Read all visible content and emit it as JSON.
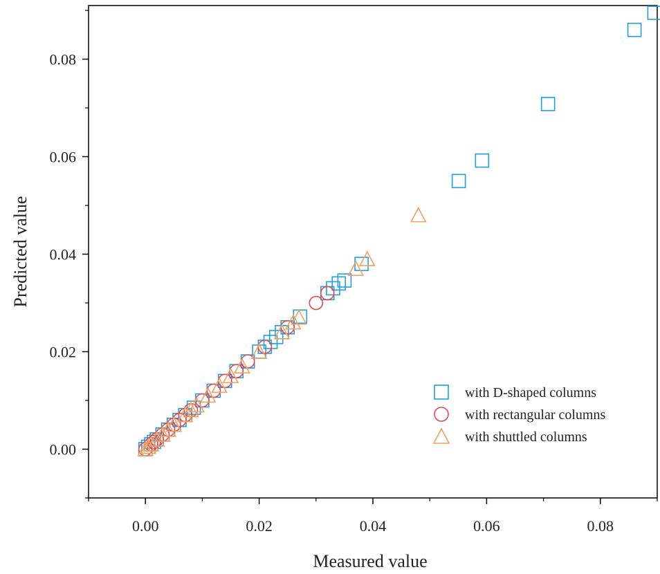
{
  "chart_data": {
    "type": "scatter",
    "title": "",
    "xlabel": "Measured value",
    "ylabel": "Predicted value",
    "xlim": [
      -0.01,
      0.09
    ],
    "ylim": [
      -0.01,
      0.091
    ],
    "xticks": [
      0.0,
      0.02,
      0.04,
      0.06,
      0.08
    ],
    "yticks": [
      0.0,
      0.02,
      0.04,
      0.06,
      0.08
    ],
    "xtick_labels": [
      "0.00",
      "0.02",
      "0.04",
      "0.06",
      "0.08"
    ],
    "ytick_labels": [
      "0.00",
      "0.02",
      "0.04",
      "0.06",
      "0.08"
    ],
    "grid": false,
    "legend_position": "bottom-right",
    "series": [
      {
        "name": "with D-shaped columns",
        "marker": "square",
        "color": "#1f9fe0",
        "x": [
          0.0895,
          0.086,
          0.0708,
          0.0592,
          0.0551,
          0.038,
          0.035,
          0.034,
          0.033,
          0.032,
          0.0272,
          0.025,
          0.024,
          0.023,
          0.022,
          0.021,
          0.02,
          0.018,
          0.016,
          0.014,
          0.012,
          0.01,
          0.0085,
          0.007,
          0.006,
          0.005,
          0.004,
          0.003,
          0.002,
          0.001,
          0.0,
          0.0005,
          0.0015
        ],
        "y": [
          0.0895,
          0.086,
          0.0708,
          0.0592,
          0.055,
          0.038,
          0.0346,
          0.034,
          0.033,
          0.032,
          0.0272,
          0.025,
          0.024,
          0.023,
          0.022,
          0.021,
          0.02,
          0.018,
          0.016,
          0.014,
          0.012,
          0.01,
          0.0085,
          0.007,
          0.006,
          0.005,
          0.004,
          0.003,
          0.002,
          0.001,
          0.0,
          0.0005,
          0.0015
        ]
      },
      {
        "name": "with rectangular columns",
        "marker": "circle",
        "color": "#e8454f",
        "x": [
          0.03,
          0.032,
          0.025,
          0.021,
          0.018,
          0.016,
          0.014,
          0.012,
          0.01,
          0.008,
          0.006,
          0.005,
          0.004,
          0.003,
          0.002,
          0.001,
          0.0,
          0.0015,
          0.007
        ],
        "y": [
          0.03,
          0.032,
          0.025,
          0.021,
          0.018,
          0.016,
          0.014,
          0.012,
          0.01,
          0.008,
          0.006,
          0.005,
          0.004,
          0.003,
          0.002,
          0.001,
          0.0,
          0.0015,
          0.007
        ]
      },
      {
        "name": "with shuttled columns",
        "marker": "triangle",
        "color": "#f0a060",
        "x": [
          0.048,
          0.039,
          0.037,
          0.027,
          0.026,
          0.024,
          0.02,
          0.017,
          0.015,
          0.013,
          0.011,
          0.009,
          0.008,
          0.007,
          0.005,
          0.004,
          0.003,
          0.002,
          0.001,
          0.0,
          0.0005
        ],
        "y": [
          0.048,
          0.039,
          0.037,
          0.027,
          0.026,
          0.024,
          0.02,
          0.017,
          0.015,
          0.013,
          0.011,
          0.009,
          0.008,
          0.007,
          0.005,
          0.004,
          0.003,
          0.002,
          0.001,
          0.0,
          0.0005
        ]
      }
    ]
  }
}
